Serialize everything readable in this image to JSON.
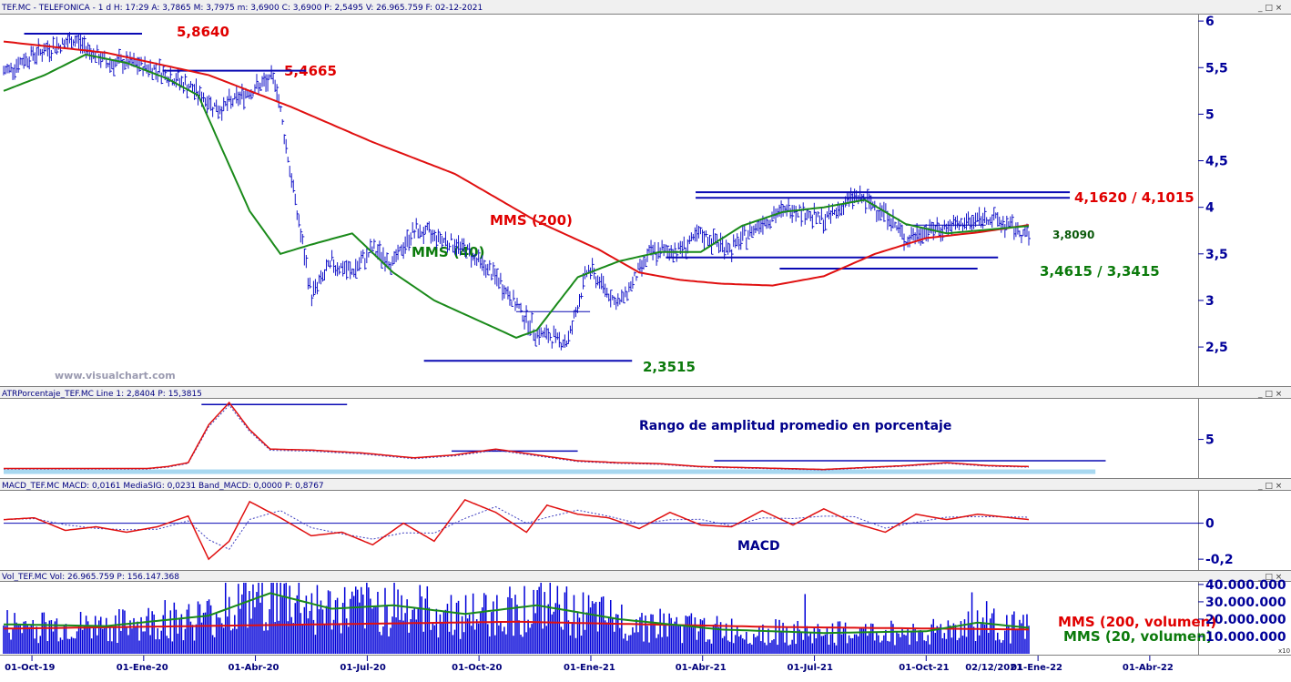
{
  "header": {
    "main": "TEF.MC - TELEFONICA -  1 d  H: 17:29  A: 3,7865  M: 3,7975  m: 3,6900  C: 3,6900  P: 2,5495  V: 26.965.759  F: 02-12-2021",
    "atr": "ATRPorcentaje_TEF.MC  Line 1: 2,8404  P: 15,3815",
    "macd": "MACD_TEF.MC  MACD: 0,0161  MediaSIG: 0,0231  Band_MACD: 0,0000  P: 0,8767",
    "vol": "Vol_TEF.MC  Vol: 26.965.759  P: 156.147.368"
  },
  "window_controls": "_ □ ×",
  "watermark": "www.visualchart.com",
  "colors": {
    "price": "#1414c8",
    "mms200": "#e01010",
    "mms40": "#1a8a1a",
    "level_line": "#0a0ab4",
    "axis": "#00009a",
    "atr_band": "#a8d8f0"
  },
  "chart_data": [
    {
      "type": "line",
      "title": "TEF.MC - TELEFONICA",
      "x_ticks": [
        "01-Oct-19",
        "01-Ene-20",
        "01-Abr-20",
        "01-Jul-20",
        "01-Oct-20",
        "01-Ene-21",
        "01-Abr-21",
        "01-Jul-21",
        "01-Oct-21",
        "01-Ene-22",
        "01-Abr-22"
      ],
      "cursor_date": "02/12/2021",
      "y_ticks": [
        "6",
        "5,5",
        "5",
        "4,5",
        "4",
        "3,5",
        "3",
        "2,5"
      ],
      "ylim": [
        2.1,
        6.05
      ],
      "series": [
        {
          "name": "TEF.MC",
          "style": "ohlc-bars",
          "x": [
            0.0,
            0.03,
            0.07,
            0.1,
            0.12,
            0.15,
            0.18,
            0.21,
            0.24,
            0.265,
            0.28,
            0.3,
            0.32,
            0.34,
            0.36,
            0.38,
            0.4,
            0.42,
            0.45,
            0.48,
            0.5,
            0.52,
            0.55,
            0.57,
            0.6,
            0.63,
            0.66,
            0.68,
            0.71,
            0.74,
            0.77,
            0.8,
            0.83,
            0.86,
            0.88,
            0.9,
            0.93,
            0.96,
            1.0
          ],
          "values": [
            5.45,
            5.65,
            5.8,
            5.55,
            5.55,
            5.48,
            5.3,
            5.05,
            5.25,
            5.38,
            4.35,
            3.05,
            3.4,
            3.3,
            3.55,
            3.4,
            3.75,
            3.7,
            3.55,
            3.25,
            2.95,
            2.65,
            2.55,
            3.35,
            2.95,
            3.5,
            3.55,
            3.7,
            3.55,
            3.85,
            4.0,
            3.85,
            4.12,
            3.95,
            3.65,
            3.75,
            3.8,
            3.9,
            3.69
          ]
        },
        {
          "name": "MMS (200)",
          "x": [
            0.0,
            0.1,
            0.2,
            0.28,
            0.36,
            0.44,
            0.52,
            0.58,
            0.62,
            0.66,
            0.7,
            0.75,
            0.8,
            0.85,
            0.9,
            0.95,
            1.0
          ],
          "values": [
            5.78,
            5.66,
            5.42,
            5.08,
            4.7,
            4.36,
            3.85,
            3.55,
            3.3,
            3.22,
            3.18,
            3.16,
            3.26,
            3.5,
            3.67,
            3.73,
            3.81
          ]
        },
        {
          "name": "MMS (40)",
          "x": [
            0.0,
            0.04,
            0.08,
            0.12,
            0.16,
            0.19,
            0.21,
            0.24,
            0.27,
            0.3,
            0.34,
            0.38,
            0.42,
            0.46,
            0.5,
            0.52,
            0.56,
            0.6,
            0.64,
            0.68,
            0.72,
            0.76,
            0.8,
            0.84,
            0.88,
            0.92,
            0.96,
            1.0
          ],
          "values": [
            5.25,
            5.42,
            5.64,
            5.55,
            5.38,
            5.2,
            4.7,
            3.96,
            3.5,
            3.6,
            3.72,
            3.3,
            3.0,
            2.8,
            2.6,
            2.68,
            3.25,
            3.42,
            3.52,
            3.52,
            3.8,
            3.95,
            4.0,
            4.08,
            3.82,
            3.72,
            3.76,
            3.8
          ]
        }
      ],
      "levels": [
        {
          "label": "5,8640",
          "value": 5.864,
          "color": "red"
        },
        {
          "label": "5,4665",
          "value": 5.4665,
          "color": "red"
        },
        {
          "label": "4,1620 / 4,1015",
          "value": 4.162,
          "value2": 4.1015,
          "color": "red"
        },
        {
          "label": "3,8090",
          "value": 3.809,
          "color": "darkgreen"
        },
        {
          "label": "3,4615 / 3,3415",
          "value": 3.4615,
          "value2": 3.3415,
          "color": "green"
        },
        {
          "label": "2,3515",
          "value": 2.3515,
          "color": "green"
        },
        {
          "label": "",
          "value": 2.88,
          "color": ""
        }
      ],
      "annotations": [
        "MMS (200)",
        "MMS (40)"
      ]
    },
    {
      "type": "line",
      "title": "Rango de amplitud promedio en porcentaje",
      "y_ticks": [
        "5"
      ],
      "ylim": [
        1.2,
        9.0
      ],
      "series": [
        {
          "name": "ATRPorcentaje_TEF.MC",
          "x": [
            0.0,
            0.05,
            0.1,
            0.14,
            0.16,
            0.18,
            0.2,
            0.22,
            0.24,
            0.26,
            0.3,
            0.35,
            0.4,
            0.44,
            0.48,
            0.52,
            0.56,
            0.6,
            0.64,
            0.68,
            0.72,
            0.76,
            0.8,
            0.84,
            0.88,
            0.92,
            0.96,
            1.0
          ],
          "values": [
            2.0,
            2.0,
            2.0,
            2.0,
            2.2,
            2.6,
            6.5,
            8.8,
            6.0,
            4.0,
            3.9,
            3.6,
            3.1,
            3.4,
            4.0,
            3.4,
            2.8,
            2.6,
            2.5,
            2.2,
            2.1,
            2.0,
            1.9,
            2.1,
            2.3,
            2.6,
            2.3,
            2.2
          ]
        }
      ],
      "levels": [
        {
          "label": "",
          "value": 8.6
        },
        {
          "label": "",
          "value": 3.8
        },
        {
          "label": "",
          "value": 2.8
        }
      ]
    },
    {
      "type": "line",
      "title": "MACD",
      "y_ticks": [
        "0",
        "-0,2"
      ],
      "ylim": [
        -0.25,
        0.17
      ],
      "series": [
        {
          "name": "MACD",
          "x": [
            0.0,
            0.03,
            0.06,
            0.09,
            0.12,
            0.15,
            0.18,
            0.2,
            0.22,
            0.24,
            0.27,
            0.3,
            0.33,
            0.36,
            0.39,
            0.42,
            0.45,
            0.48,
            0.51,
            0.53,
            0.56,
            0.59,
            0.62,
            0.65,
            0.68,
            0.71,
            0.74,
            0.77,
            0.8,
            0.83,
            0.86,
            0.89,
            0.92,
            0.95,
            1.0
          ],
          "values": [
            0.02,
            0.03,
            -0.04,
            -0.02,
            -0.05,
            -0.02,
            0.04,
            -0.2,
            -0.1,
            0.12,
            0.03,
            -0.07,
            -0.05,
            -0.12,
            0.0,
            -0.1,
            0.13,
            0.06,
            -0.05,
            0.1,
            0.05,
            0.03,
            -0.03,
            0.06,
            -0.01,
            -0.02,
            0.07,
            -0.01,
            0.08,
            0.0,
            -0.05,
            0.05,
            0.02,
            0.05,
            0.02
          ]
        },
        {
          "name": "MediaSIG",
          "x": [],
          "values": []
        }
      ],
      "levels": [
        {
          "label": "",
          "value": 0
        }
      ]
    },
    {
      "type": "bar",
      "title": "Vol_TEF.MC",
      "y_ticks": [
        "40.000.000",
        "30.000.000",
        "20.000.000",
        "10.000.000"
      ],
      "ylim": [
        0,
        41000000
      ],
      "unit_marker": "x10",
      "series": [
        {
          "name": "Vol"
        },
        {
          "name": "MMS (200, volumen)",
          "x": [
            0.0,
            0.25,
            0.5,
            0.75,
            1.0
          ],
          "values": [
            14500000,
            16500000,
            18500000,
            15500000,
            14000000
          ]
        },
        {
          "name": "MMS (20, volumen)",
          "x": [
            0.0,
            0.1,
            0.2,
            0.26,
            0.32,
            0.38,
            0.45,
            0.52,
            0.6,
            0.7,
            0.8,
            0.9,
            0.95,
            1.0
          ],
          "values": [
            17000000,
            16000000,
            22000000,
            35000000,
            26000000,
            28000000,
            23000000,
            28000000,
            20000000,
            14000000,
            12000000,
            13000000,
            18000000,
            15000000
          ]
        }
      ]
    }
  ]
}
